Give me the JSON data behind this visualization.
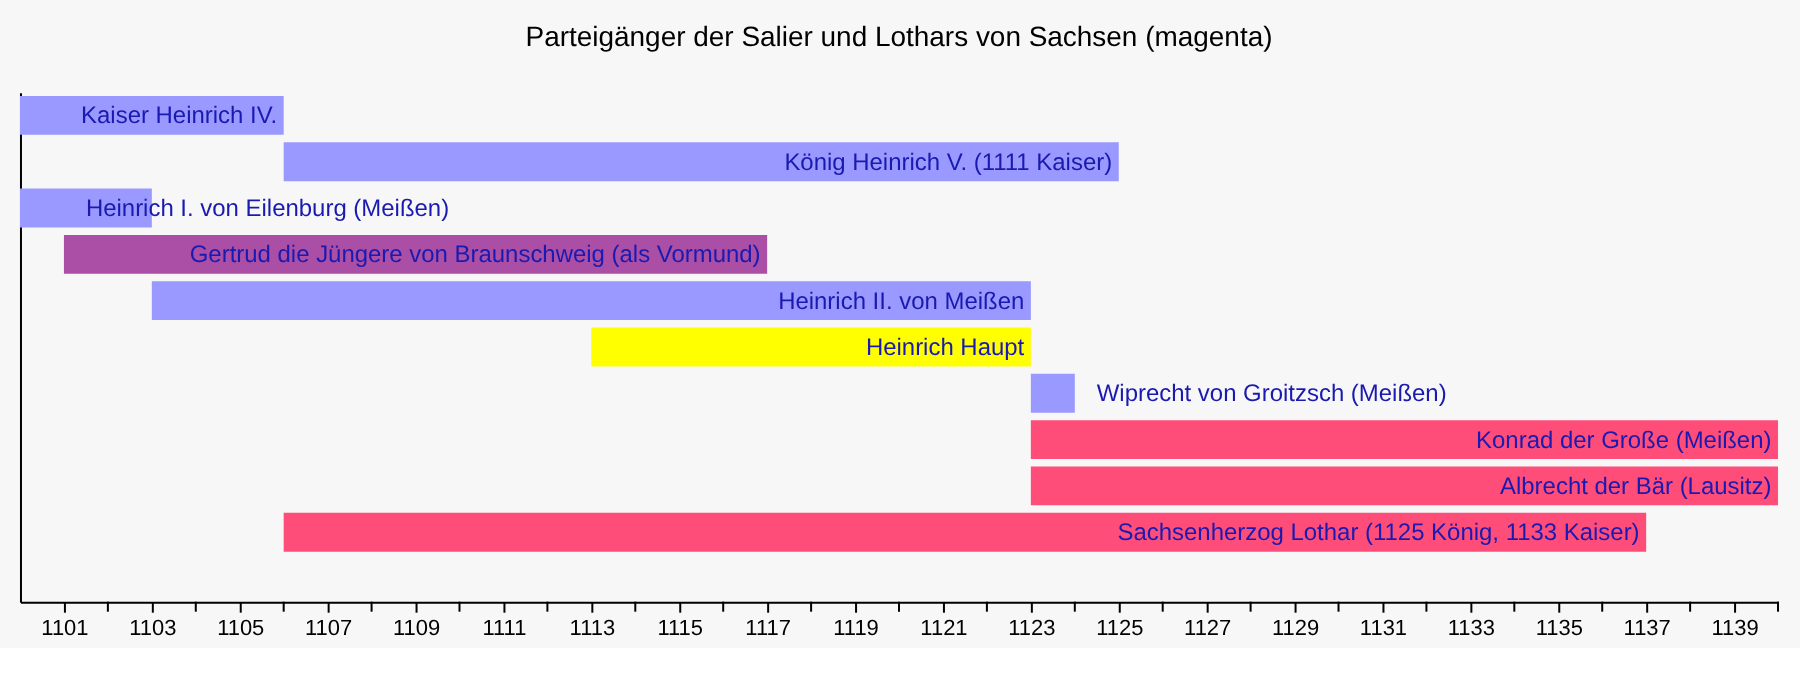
{
  "chart_data": {
    "type": "bar",
    "orientation": "horizontal",
    "title": "Parteigänger der Salier und Lothars von Sachsen (magenta)",
    "categories": [
      "Kaiser Heinrich IV.",
      "König Heinrich V. (1111 Kaiser)",
      "Heinrich I. von Eilenburg (Meißen)",
      "Gertrud die Jüngere von Braunschweig (als Vormund)",
      "Heinrich II. von Meißen",
      "Heinrich Haupt",
      "Wiprecht von Groitzsch (Meißen)",
      "Konrad der Große (Meißen)",
      "Albrecht der Bär (Lausitz)",
      "Sachsenherzog Lothar (1125 König, 1133 Kaiser)"
    ],
    "base": [
      1100,
      1106,
      1100,
      1101,
      1103,
      1113,
      1123,
      1123,
      1123,
      1106
    ],
    "values": [
      6,
      19,
      3,
      16,
      20,
      10,
      1,
      17,
      17,
      31
    ],
    "colors": [
      "#9999ff",
      "#9999ff",
      "#9999ff",
      "#aa4ea6",
      "#9999ff",
      "#ffff00",
      "#9999ff",
      "#ff4d7a",
      "#ff4d7a",
      "#ff4d7a"
    ],
    "xlim": [
      1100,
      1140
    ],
    "xticks": [
      1101,
      {
        "value": 1102,
        "label": null
      },
      1103,
      {
        "value": 1104,
        "label": null
      },
      1105,
      {
        "value": 1106,
        "label": null
      },
      1107,
      {
        "value": 1108,
        "label": null
      },
      1109,
      {
        "value": 1110,
        "label": null
      },
      1111,
      {
        "value": 1112,
        "label": null
      },
      1113,
      {
        "value": 1114,
        "label": null
      },
      1115,
      {
        "value": 1116,
        "label": null
      },
      1117,
      {
        "value": 1118,
        "label": null
      },
      1119,
      {
        "value": 1120,
        "label": null
      },
      1121,
      {
        "value": 1122,
        "label": null
      },
      1123,
      {
        "value": 1124,
        "label": null
      },
      1125,
      {
        "value": 1126,
        "label": null
      },
      1127,
      {
        "value": 1128,
        "label": null
      },
      1129,
      {
        "value": 1130,
        "label": null
      },
      1131,
      {
        "value": 1132,
        "label": null
      },
      1133,
      {
        "value": 1134,
        "label": null
      },
      1135,
      {
        "value": 1136,
        "label": null
      },
      1137,
      {
        "value": 1138,
        "label": null
      },
      1139,
      {
        "value": 1140,
        "label": null
      }
    ],
    "tick_labels": "x",
    "grid": false
  }
}
